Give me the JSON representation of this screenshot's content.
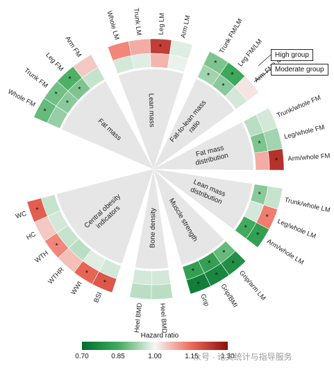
{
  "chart_data": {
    "type": "heatmap",
    "layout": "circular",
    "colorbar": {
      "title": "Hazard ratio",
      "min": 0.7,
      "max": 1.3,
      "ticks": [
        "0.70",
        "0.85",
        "1.00",
        "1.15",
        "1.30"
      ],
      "colors": [
        "#006d2c",
        "#41ab5d",
        "#f7f7f7",
        "#ef6a5a",
        "#8b0e0e"
      ]
    },
    "rings": [
      {
        "key": "high",
        "label": "High group"
      },
      {
        "key": "moderate",
        "label": "Moderate group"
      }
    ],
    "significance_marker": "*",
    "groups": [
      {
        "name": "Fat mass",
        "variables": [
          {
            "label": "Whole FM",
            "high": 0.88,
            "high_sig": true,
            "moderate": 0.92,
            "moderate_sig": false
          },
          {
            "label": "Trunk FM",
            "high": 0.89,
            "high_sig": true,
            "moderate": 0.91,
            "moderate_sig": true
          },
          {
            "label": "Leg FM",
            "high": 0.86,
            "high_sig": true,
            "moderate": 0.9,
            "moderate_sig": true
          },
          {
            "label": "Arm FM",
            "high": 1.05,
            "high_sig": false,
            "moderate": 0.96,
            "moderate_sig": false
          }
        ]
      },
      {
        "name": "Lean mass",
        "variables": [
          {
            "label": "Whole LM",
            "high": 1.12,
            "high_sig": false,
            "moderate": 0.97,
            "moderate_sig": false
          },
          {
            "label": "Trunk LM",
            "high": 1.08,
            "high_sig": false,
            "moderate": 0.98,
            "moderate_sig": false
          },
          {
            "label": "Leg LM",
            "high": 1.22,
            "high_sig": true,
            "moderate": 1.07,
            "moderate_sig": false
          },
          {
            "label": "Arm LM",
            "high": 0.98,
            "high_sig": false,
            "moderate": 0.99,
            "moderate_sig": false
          }
        ]
      },
      {
        "name": "Fat-to-lean mass ratio",
        "variables": [
          {
            "label": "Trunk FM/LM",
            "high": 0.9,
            "high_sig": true,
            "moderate": 0.93,
            "moderate_sig": true
          },
          {
            "label": "Leg FM/LM",
            "high": 0.84,
            "high_sig": true,
            "moderate": 0.91,
            "moderate_sig": true
          },
          {
            "label": "Arm FM/LM",
            "high": 1.02,
            "high_sig": false,
            "moderate": 0.97,
            "moderate_sig": false
          }
        ]
      },
      {
        "name": "Fat mass distribution",
        "variables": [
          {
            "label": "Trunk/whole FM",
            "high": 0.97,
            "high_sig": false,
            "moderate": 0.95,
            "moderate_sig": false
          },
          {
            "label": "Leg/whole FM",
            "high": 0.93,
            "high_sig": false,
            "moderate": 0.9,
            "moderate_sig": true
          },
          {
            "label": "Arm/whole FM",
            "high": 1.24,
            "high_sig": true,
            "moderate": 1.08,
            "moderate_sig": false
          }
        ]
      },
      {
        "name": "Lean mass distribution",
        "variables": [
          {
            "label": "Trunk/whole LM",
            "high": 0.96,
            "high_sig": false,
            "moderate": 0.91,
            "moderate_sig": true
          },
          {
            "label": "Leg/whole LM",
            "high": 1.13,
            "high_sig": true,
            "moderate": 0.97,
            "moderate_sig": false
          },
          {
            "label": "Arm/whole LM",
            "high": 0.82,
            "high_sig": true,
            "moderate": 0.85,
            "moderate_sig": true
          }
        ]
      },
      {
        "name": "Muscle strength",
        "variables": [
          {
            "label": "Grip/arm LM",
            "high": 0.78,
            "high_sig": true,
            "moderate": 0.88,
            "moderate_sig": true
          },
          {
            "label": "Grip/BMI",
            "high": 0.76,
            "high_sig": true,
            "moderate": 0.82,
            "moderate_sig": true
          },
          {
            "label": "Grip",
            "high": 0.74,
            "high_sig": true,
            "moderate": 0.82,
            "moderate_sig": true
          }
        ]
      },
      {
        "name": "Bone density",
        "variables": [
          {
            "label": "Heel BMD t-score",
            "high": 0.95,
            "high_sig": false,
            "moderate": 0.97,
            "moderate_sig": false
          },
          {
            "label": "Heel BMD",
            "high": 0.95,
            "high_sig": false,
            "moderate": 0.97,
            "moderate_sig": false
          }
        ]
      },
      {
        "name": "Central obesity indicators",
        "variables": [
          {
            "label": "BSI",
            "high": 1.18,
            "high_sig": true,
            "moderate": 0.97,
            "moderate_sig": false
          },
          {
            "label": "WWI",
            "high": 1.16,
            "high_sig": true,
            "moderate": 0.98,
            "moderate_sig": false
          },
          {
            "label": "WTHR",
            "high": 1.06,
            "high_sig": false,
            "moderate": 0.95,
            "moderate_sig": false
          },
          {
            "label": "WTH",
            "high": 1.12,
            "high_sig": true,
            "moderate": 0.96,
            "moderate_sig": false
          },
          {
            "label": "HC",
            "high": 1.05,
            "high_sig": false,
            "moderate": 0.97,
            "moderate_sig": false
          },
          {
            "label": "WC",
            "high": 1.17,
            "high_sig": true,
            "moderate": 0.96,
            "moderate_sig": false
          }
        ]
      }
    ]
  },
  "watermark": "众号 · 论文统计与指导服务"
}
